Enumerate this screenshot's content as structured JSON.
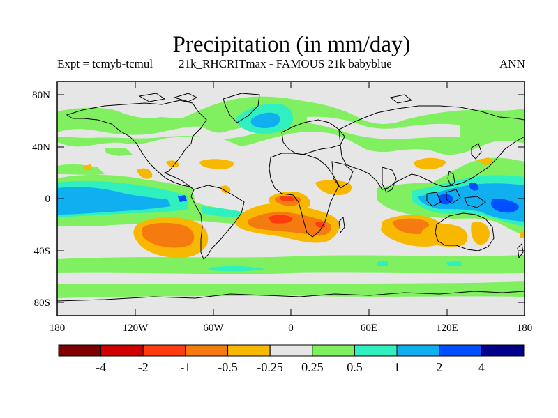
{
  "title": "Precipitation (in mm/day)",
  "subtitle_left": "Expt = tcmyb-tcmul",
  "subtitle_center": "21k_RHCRITmax - FAMOUS 21k babyblue",
  "subtitle_right": "ANN",
  "lat_ticks": [
    "80N",
    "40N",
    "0",
    "40S",
    "80S"
  ],
  "lon_ticks": [
    "180",
    "120W",
    "60W",
    "0",
    "60E",
    "120E",
    "180"
  ],
  "colorbar": {
    "labels": [
      "-4",
      "-2",
      "-1",
      "-0.5",
      "-0.25",
      "0.25",
      "0.5",
      "1",
      "2",
      "4"
    ],
    "colors": [
      "#800000",
      "#d00000",
      "#ff3b10",
      "#f57b10",
      "#f8b800",
      "#e6e6e6",
      "#80f060",
      "#30f0c0",
      "#10b0f0",
      "#0050ff",
      "#00008b"
    ]
  },
  "map_palette": {
    "background": "#e6e6e6",
    "neg_025_05": "#f8b800",
    "neg_05_1": "#f57b10",
    "neg_1_2": "#ff3b10",
    "pos_025_05": "#80f060",
    "pos_05_1": "#30f0c0",
    "pos_1_2": "#10b0f0",
    "pos_2_4": "#0050ff"
  }
}
